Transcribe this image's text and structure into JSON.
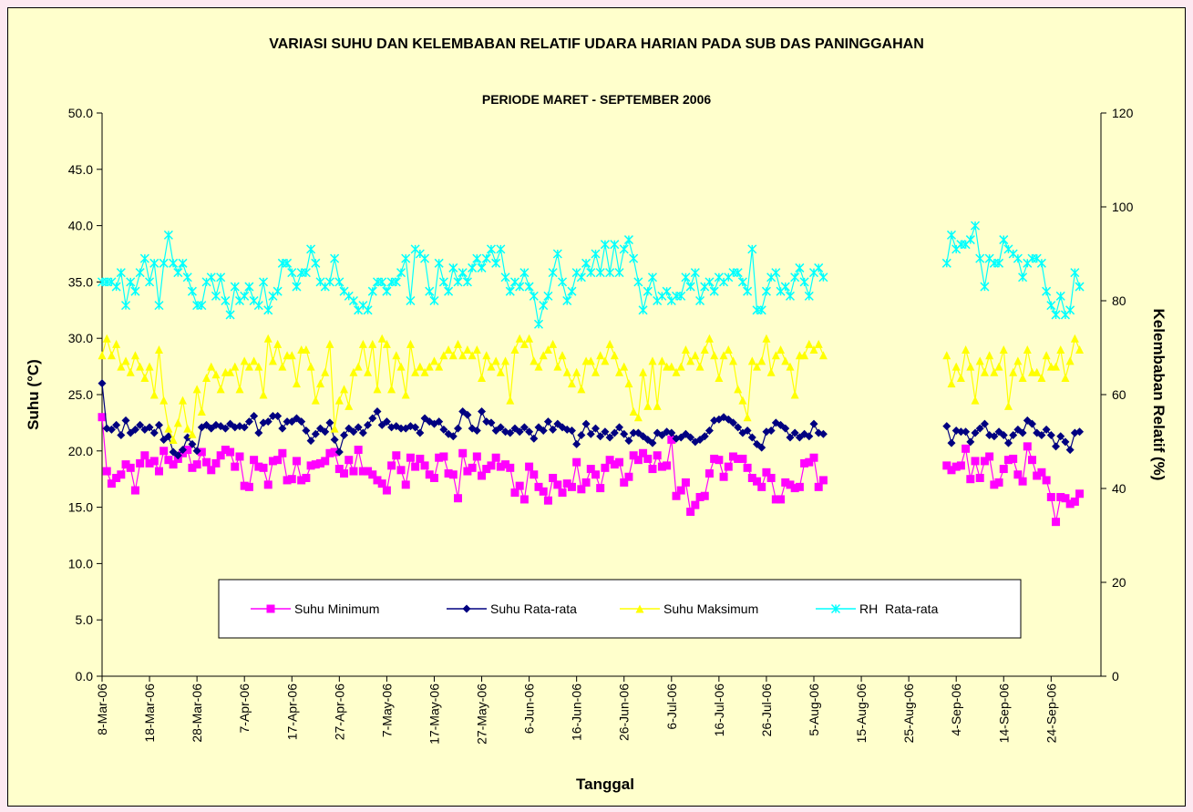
{
  "chart_data": {
    "type": "line",
    "title": "VARIASI SUHU DAN KELEMBABAN RELATIF UDARA HARIAN PADA SUB DAS PANINGGAHAN",
    "subtitle": "PERIODE MARET - SEPTEMBER 2006",
    "x_label": "Tanggal",
    "y_label": "Suhu (°C)",
    "y2_label": "Kelembaban Relatif (%)",
    "categories": [
      "8-Mar-06",
      null,
      null,
      null,
      null,
      null,
      null,
      null,
      null,
      null,
      "18-Mar-06",
      null,
      null,
      null,
      null,
      null,
      null,
      null,
      null,
      null,
      "28-Mar-06",
      null,
      null,
      null,
      null,
      null,
      null,
      null,
      null,
      null,
      "7-Apr-06",
      null,
      null,
      null,
      null,
      null,
      null,
      null,
      null,
      null,
      "17-Apr-06",
      null,
      null,
      null,
      null,
      null,
      null,
      null,
      null,
      null,
      "27-Apr-06",
      null,
      null,
      null,
      null,
      null,
      null,
      null,
      null,
      null,
      "7-May-06",
      null,
      null,
      null,
      null,
      null,
      null,
      null,
      null,
      null,
      "17-May-06",
      null,
      null,
      null,
      null,
      null,
      null,
      null,
      null,
      null,
      "27-May-06",
      null,
      null,
      null,
      null,
      null,
      null,
      null,
      null,
      null,
      "6-Jun-06",
      null,
      null,
      null,
      null,
      null,
      null,
      null,
      null,
      null,
      "16-Jun-06",
      null,
      null,
      null,
      null,
      null,
      null,
      null,
      null,
      null,
      "26-Jun-06",
      null,
      null,
      null,
      null,
      null,
      null,
      null,
      null,
      null,
      "6-Jul-06",
      null,
      null,
      null,
      null,
      null,
      null,
      null,
      null,
      null,
      "16-Jul-06",
      null,
      null,
      null,
      null,
      null,
      null,
      null,
      null,
      null,
      "26-Jul-06",
      null,
      null,
      null,
      null,
      null,
      null,
      null,
      null,
      null,
      "5-Aug-06",
      null,
      null,
      null,
      null,
      null,
      null,
      null,
      null,
      null,
      "15-Aug-06",
      null,
      null,
      null,
      null,
      null,
      null,
      null,
      null,
      null,
      "25-Aug-06",
      null,
      null,
      null,
      null,
      null,
      null,
      null,
      null,
      null,
      "4-Sep-06",
      null,
      null,
      null,
      null,
      null,
      null,
      null,
      null,
      null,
      "14-Sep-06",
      null,
      null,
      null,
      null,
      null,
      null,
      null,
      null,
      null,
      "24-Sep-06",
      null,
      null,
      null,
      null,
      null,
      null
    ],
    "ylim": [
      0,
      50
    ],
    "yticks": [
      {
        "value": 0,
        "label": "0.0"
      },
      {
        "value": 5,
        "label": "5.0"
      },
      {
        "value": 10,
        "label": "10.0"
      },
      {
        "value": 15,
        "label": "15.0"
      },
      {
        "value": 20,
        "label": "20.0"
      },
      {
        "value": 25,
        "label": "25.0"
      },
      {
        "value": 30,
        "label": "30.0"
      },
      {
        "value": 35,
        "label": "35.0"
      },
      {
        "value": 40,
        "label": "40.0"
      },
      {
        "value": 45,
        "label": "45.0"
      },
      {
        "value": 50,
        "label": "50.0"
      }
    ],
    "y2lim": [
      0,
      120
    ],
    "y2ticks": [
      0,
      20,
      40,
      60,
      80,
      100,
      120
    ],
    "grid": false,
    "legend": "bottom",
    "series": [
      {
        "name": "Suhu Minimum",
        "color": "#ff00ff",
        "marker": "square",
        "values": [
          23.0,
          18.2,
          17.1,
          17.6,
          17.9,
          18.8,
          18.5,
          16.5,
          18.9,
          19.6,
          18.9,
          19.1,
          18.2,
          20.0,
          19.2,
          18.8,
          19.3,
          19.8,
          20.1,
          18.5,
          18.8,
          19.9,
          19.0,
          18.3,
          18.9,
          19.6,
          20.1,
          19.9,
          18.6,
          19.5,
          16.9,
          16.8,
          19.2,
          18.6,
          18.5,
          17.0,
          19.1,
          19.2,
          19.8,
          17.4,
          17.5,
          19.1,
          17.4,
          17.6,
          18.7,
          18.8,
          18.9,
          19.1,
          19.8,
          19.9,
          18.4,
          18.0,
          19.2,
          18.2,
          20.1,
          18.2,
          18.2,
          17.9,
          17.4,
          17.1,
          16.5,
          18.7,
          19.6,
          18.3,
          17.0,
          19.4,
          18.6,
          19.3,
          18.7,
          17.9,
          17.6,
          19.4,
          19.5,
          18.0,
          17.9,
          15.8,
          19.8,
          18.2,
          18.5,
          19.5,
          17.8,
          18.4,
          18.7,
          19.4,
          18.6,
          18.8,
          18.5,
          16.3,
          16.9,
          15.7,
          18.6,
          17.9,
          16.8,
          16.4,
          15.6,
          17.6,
          17.0,
          16.3,
          17.1,
          16.8,
          19.0,
          16.6,
          17.2,
          18.4,
          17.9,
          16.7,
          18.5,
          19.2,
          18.8,
          19.0,
          17.2,
          17.7,
          19.6,
          19.2,
          19.8,
          19.3,
          18.4,
          19.6,
          18.6,
          18.7,
          21.0,
          16.0,
          16.5,
          17.2,
          14.6,
          15.2,
          15.9,
          16.0,
          18.0,
          19.3,
          19.2,
          17.7,
          18.6,
          19.5,
          19.3,
          19.3,
          18.5,
          17.6,
          17.3,
          16.8,
          18.1,
          17.6,
          15.7,
          15.7,
          17.2,
          17.0,
          16.7,
          16.8,
          18.9,
          19.0,
          19.4,
          16.8,
          17.4,
          null,
          null,
          null,
          null,
          null,
          null,
          null,
          null,
          null,
          null,
          null,
          null,
          null,
          null,
          null,
          null,
          null,
          null,
          null,
          null,
          null,
          null,
          null,
          null,
          null,
          18.7,
          18.3,
          18.6,
          18.7,
          20.2,
          17.5,
          19.1,
          17.6,
          19.1,
          19.5,
          17.0,
          17.2,
          18.4,
          19.2,
          19.3,
          17.9,
          17.3,
          20.4,
          19.2,
          17.8,
          18.1,
          17.4,
          15.9,
          13.7,
          15.9,
          15.8,
          15.3,
          15.5,
          16.2
        ]
      },
      {
        "name": "Suhu Rata-rata",
        "color": "#000080",
        "marker": "diamond",
        "values": [
          26.0,
          22.0,
          21.9,
          22.3,
          21.4,
          22.7,
          21.6,
          21.9,
          22.3,
          21.9,
          22.1,
          21.6,
          22.3,
          21.0,
          21.3,
          19.9,
          19.6,
          20.1,
          21.2,
          20.6,
          20.0,
          22.1,
          22.3,
          22.0,
          22.3,
          22.2,
          22.0,
          22.4,
          22.1,
          22.2,
          22.1,
          22.6,
          23.1,
          21.6,
          22.5,
          22.6,
          23.1,
          23.1,
          22.0,
          22.6,
          22.6,
          22.9,
          22.6,
          21.8,
          20.9,
          21.5,
          22.0,
          21.7,
          22.5,
          21.0,
          19.9,
          21.4,
          22.0,
          21.7,
          22.1,
          21.6,
          22.3,
          22.9,
          23.5,
          22.3,
          22.6,
          22.1,
          22.2,
          22.0,
          22.0,
          22.2,
          22.1,
          21.6,
          22.9,
          22.6,
          22.4,
          22.6,
          21.9,
          21.5,
          21.3,
          22.0,
          23.5,
          23.2,
          22.0,
          21.8,
          23.5,
          22.6,
          22.5,
          21.8,
          22.1,
          21.7,
          21.6,
          22.0,
          21.7,
          22.1,
          21.7,
          21.1,
          22.1,
          21.8,
          22.6,
          21.9,
          22.4,
          22.1,
          21.9,
          21.8,
          20.6,
          21.4,
          22.4,
          21.5,
          22.0,
          21.3,
          21.7,
          21.2,
          21.6,
          22.1,
          21.5,
          20.9,
          21.6,
          21.6,
          21.3,
          21.0,
          20.7,
          21.6,
          21.4,
          21.7,
          21.6,
          21.1,
          21.2,
          21.5,
          21.2,
          20.8,
          21.0,
          21.3,
          21.8,
          22.7,
          22.8,
          23.0,
          22.8,
          22.5,
          22.1,
          21.6,
          21.8,
          21.2,
          20.6,
          20.3,
          21.7,
          21.8,
          22.5,
          22.3,
          22.0,
          21.2,
          21.6,
          21.2,
          21.5,
          21.3,
          22.4,
          21.6,
          21.5,
          null,
          null,
          null,
          null,
          null,
          null,
          null,
          null,
          null,
          null,
          null,
          null,
          null,
          null,
          null,
          null,
          null,
          null,
          null,
          null,
          null,
          null,
          null,
          null,
          null,
          22.2,
          20.7,
          21.8,
          21.7,
          21.7,
          20.8,
          21.6,
          22.0,
          22.4,
          21.4,
          21.3,
          21.7,
          21.4,
          20.7,
          21.4,
          21.9,
          21.6,
          22.7,
          22.4,
          21.6,
          21.4,
          21.9,
          21.4,
          20.4,
          21.3,
          20.8,
          20.1,
          21.6,
          21.7
        ]
      },
      {
        "name": "Suhu Maksimum",
        "color": "#ffff00",
        "marker": "triangle",
        "values": [
          28.5,
          30.0,
          28.5,
          29.5,
          27.5,
          28.0,
          27.0,
          28.5,
          27.5,
          26.5,
          27.5,
          25.0,
          29.0,
          24.5,
          22.0,
          21.0,
          22.5,
          24.5,
          22.0,
          21.5,
          25.5,
          23.5,
          26.5,
          27.5,
          26.8,
          25.5,
          27.0,
          27.0,
          27.5,
          25.5,
          28.0,
          27.5,
          28.0,
          27.5,
          25.0,
          30.0,
          28.0,
          29.5,
          27.5,
          28.5,
          28.5,
          26.0,
          29.0,
          29.0,
          27.5,
          24.5,
          26.0,
          27.0,
          29.5,
          22.0,
          24.5,
          25.5,
          24.0,
          27.0,
          27.5,
          29.5,
          27.0,
          29.5,
          25.5,
          30.0,
          29.5,
          25.5,
          28.5,
          27.5,
          25.0,
          29.5,
          27.0,
          27.5,
          27.0,
          27.5,
          28.0,
          27.5,
          28.5,
          29.0,
          28.5,
          29.5,
          28.5,
          29.0,
          28.5,
          29.0,
          26.5,
          28.5,
          27.5,
          28.0,
          27.0,
          28.0,
          24.5,
          29.0,
          30.0,
          29.5,
          30.0,
          28.0,
          27.5,
          28.5,
          29.0,
          29.5,
          27.5,
          28.5,
          27.0,
          26.0,
          27.0,
          25.5,
          28.0,
          28.0,
          27.0,
          28.5,
          28.0,
          29.5,
          28.5,
          27.0,
          27.5,
          26.0,
          23.5,
          23.0,
          27.0,
          24.0,
          28.0,
          24.0,
          28.0,
          27.5,
          27.5,
          27.0,
          27.5,
          29.0,
          28.0,
          28.5,
          27.5,
          29.0,
          30.0,
          28.5,
          26.5,
          28.5,
          29.0,
          28.0,
          25.5,
          24.5,
          23.0,
          28.0,
          27.5,
          28.0,
          30.0,
          27.0,
          28.5,
          29.0,
          28.0,
          27.5,
          25.0,
          28.5,
          28.5,
          29.5,
          29.0,
          29.5,
          28.5,
          null,
          null,
          null,
          null,
          null,
          null,
          null,
          null,
          null,
          null,
          null,
          null,
          null,
          null,
          null,
          null,
          null,
          null,
          null,
          null,
          null,
          null,
          null,
          null,
          null,
          28.5,
          26.0,
          27.5,
          26.5,
          29.0,
          27.5,
          24.5,
          28.0,
          27.0,
          28.5,
          27.0,
          27.5,
          29.0,
          24.0,
          27.0,
          28.0,
          26.5,
          29.0,
          27.0,
          27.0,
          26.5,
          28.5,
          27.5,
          27.5,
          29.0,
          26.5,
          28.0,
          30.0,
          29.0
        ]
      },
      {
        "name": "RH  Rata-rata",
        "color": "#00ffff",
        "marker": "star",
        "axis": "y2",
        "values": [
          84,
          84,
          84,
          83,
          86,
          79,
          84,
          82,
          86,
          89,
          84,
          88,
          79,
          88,
          94,
          88,
          86,
          88,
          85,
          82,
          79,
          79,
          84,
          85,
          81,
          85,
          80,
          77,
          83,
          80,
          81,
          83,
          80,
          79,
          84,
          78,
          81,
          82,
          88,
          88,
          86,
          83,
          86,
          86,
          91,
          88,
          84,
          83,
          84,
          89,
          84,
          82,
          81,
          80,
          78,
          79,
          78,
          82,
          84,
          84,
          82,
          84,
          84,
          86,
          89,
          80,
          91,
          90,
          89,
          82,
          80,
          88,
          84,
          82,
          87,
          84,
          86,
          84,
          87,
          89,
          87,
          89,
          91,
          88,
          91,
          85,
          82,
          84,
          83,
          86,
          83,
          81,
          75,
          79,
          81,
          86,
          90,
          84,
          80,
          82,
          86,
          85,
          88,
          86,
          90,
          86,
          92,
          86,
          92,
          86,
          91,
          93,
          89,
          84,
          78,
          82,
          85,
          80,
          81,
          82,
          80,
          81,
          81,
          85,
          83,
          86,
          80,
          83,
          84,
          82,
          85,
          84,
          85,
          86,
          86,
          84,
          82,
          91,
          78,
          78,
          82,
          85,
          86,
          82,
          83,
          81,
          85,
          87,
          84,
          81,
          86,
          87,
          85,
          null,
          null,
          null,
          null,
          null,
          null,
          null,
          null,
          null,
          null,
          null,
          null,
          null,
          null,
          null,
          null,
          null,
          null,
          null,
          null,
          null,
          null,
          null,
          null,
          null,
          88,
          94,
          91,
          92,
          92,
          93,
          96,
          89,
          83,
          89,
          88,
          88,
          93,
          91,
          90,
          89,
          85,
          88,
          89,
          89,
          88,
          82,
          79,
          77,
          81,
          77,
          78,
          86,
          83
        ]
      }
    ]
  }
}
